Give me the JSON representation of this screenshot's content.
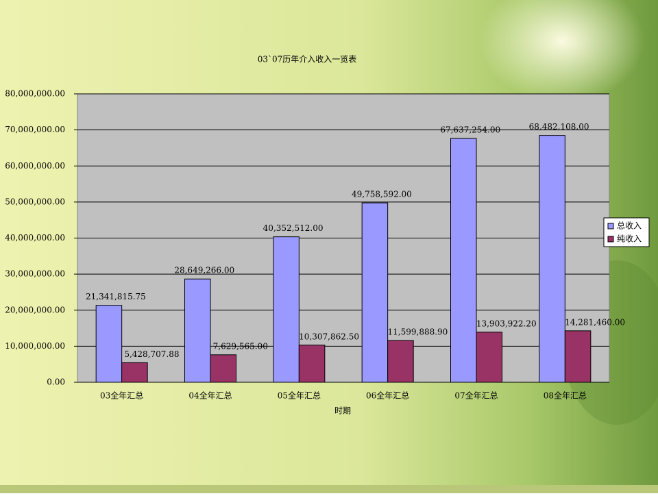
{
  "chart_data": {
    "type": "bar",
    "title": "03`07历年介入收入一览表",
    "x_label": "时期",
    "categories": [
      "03全年汇总",
      "04全年汇总",
      "05全年汇总",
      "06全年汇总",
      "07全年汇总",
      "08全年汇总"
    ],
    "series": [
      {
        "name": "总收入",
        "color": "#9999ff",
        "values": [
          21341815.75,
          28649266,
          40352512,
          49758592,
          67637254,
          68482108
        ],
        "value_labels": [
          "21,341,815.75",
          "28,649,266.00",
          "40,352,512.00",
          "49,758,592.00",
          "67,637,254.00",
          "68,482,108.00"
        ]
      },
      {
        "name": "纯收入",
        "color": "#993366",
        "values": [
          5428707.88,
          7629565,
          10307862.5,
          11599888.9,
          13903922.2,
          14281460
        ],
        "value_labels": [
          "5,428,707.88",
          "7,629,565.00",
          "10,307,862.50",
          "11,599,888.90",
          "13,903,922.20",
          "14,281,460.00"
        ]
      }
    ],
    "ylim": [
      0,
      80000000
    ],
    "yticks": [
      {
        "value": 0,
        "label": "0.00"
      },
      {
        "value": 10000000,
        "label": "10,000,000.00"
      },
      {
        "value": 20000000,
        "label": "20,000,000.00"
      },
      {
        "value": 30000000,
        "label": "30,000,000.00"
      },
      {
        "value": 40000000,
        "label": "40,000,000.00"
      },
      {
        "value": 50000000,
        "label": "50,000,000.00"
      },
      {
        "value": 60000000,
        "label": "60,000,000.00"
      },
      {
        "value": 70000000,
        "label": "70,000,000.00"
      },
      {
        "value": 80000000,
        "label": "80,000,000.00"
      }
    ],
    "grid": true,
    "legend": "right",
    "plot_background": "#c0c0c0"
  }
}
